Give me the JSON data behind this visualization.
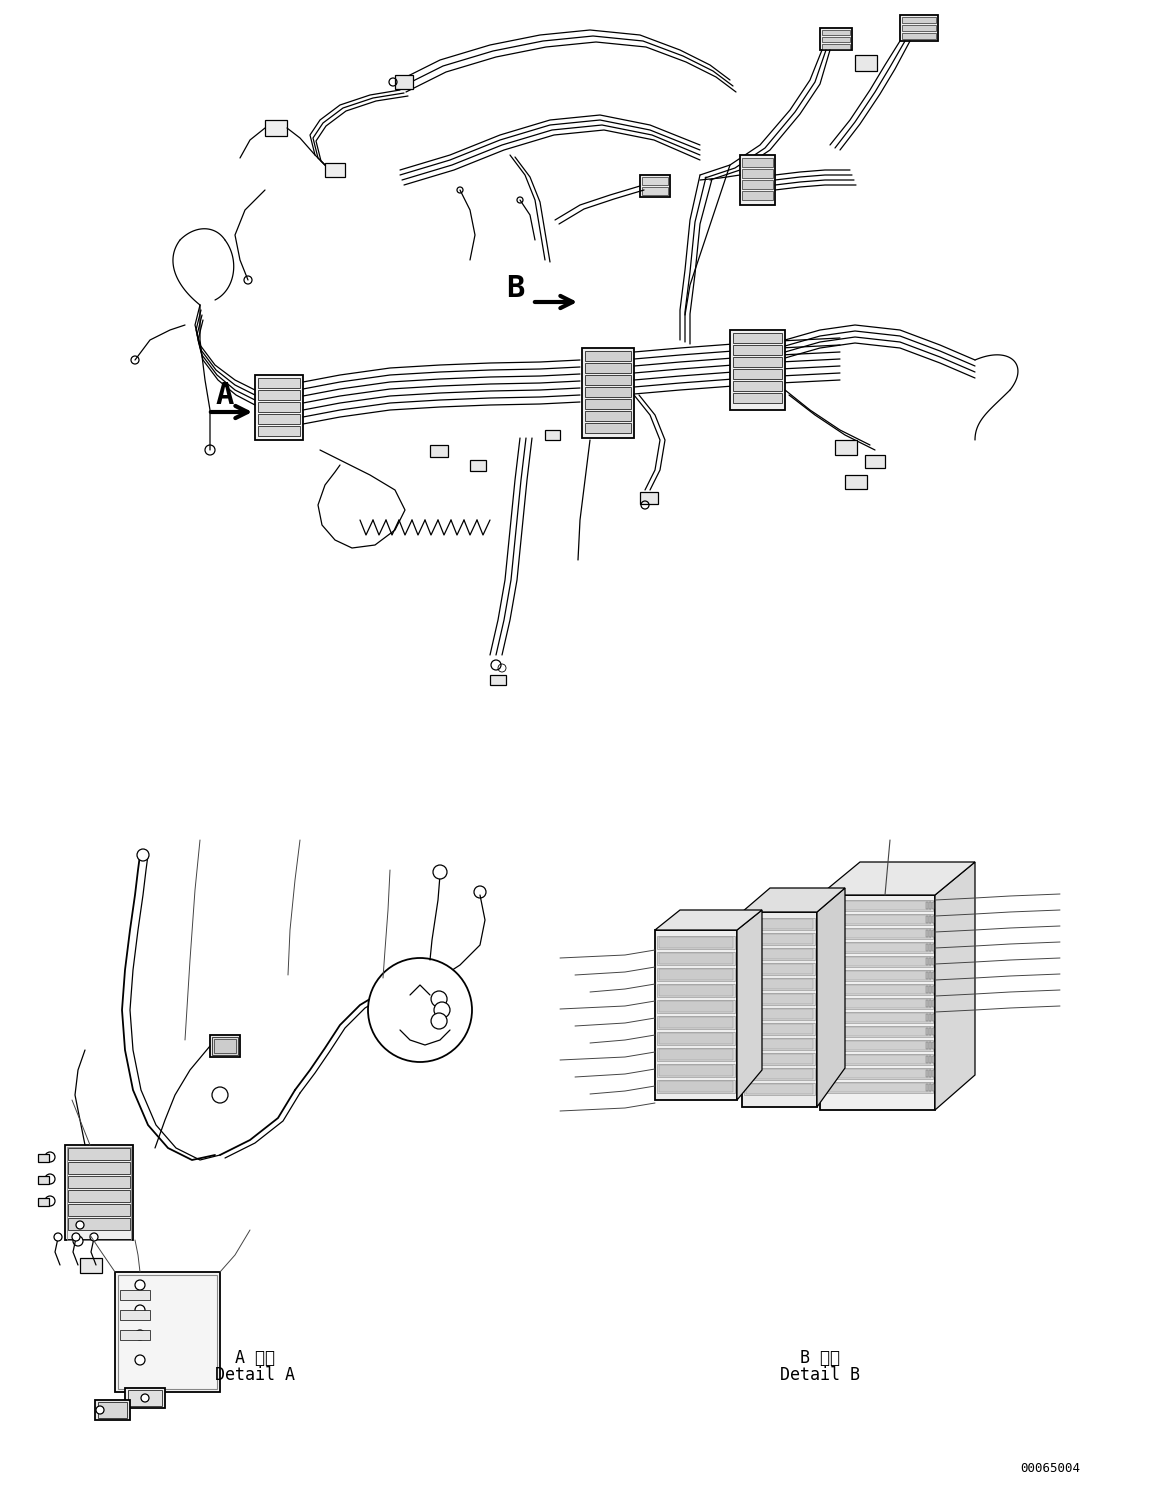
{
  "background_color": "#ffffff",
  "line_color": "#000000",
  "fig_width": 11.63,
  "fig_height": 14.88,
  "label_A": "A",
  "label_B": "B",
  "detail_A_jp": "A 詳細",
  "detail_A_en": "Detail A",
  "detail_B_jp": "B 詳細",
  "detail_B_en": "Detail B",
  "part_number": "00065004",
  "dpi": 100
}
